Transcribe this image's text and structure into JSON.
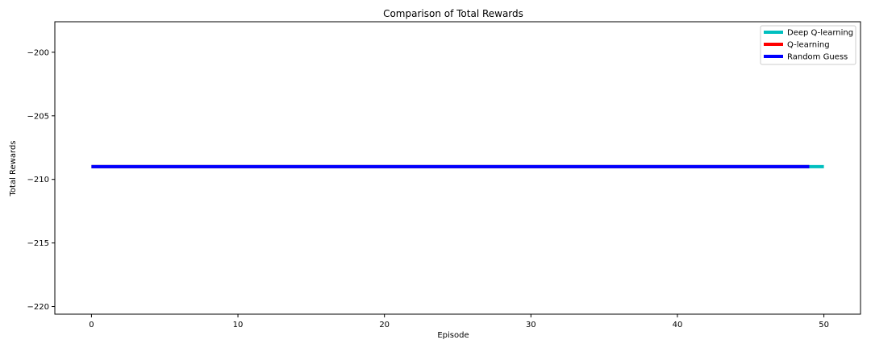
{
  "chart_data": {
    "type": "line",
    "title": "Comparison of Total Rewards",
    "xlabel": "Episode",
    "ylabel": "Total Rewards",
    "xlim": [
      -2.5,
      52.5
    ],
    "ylim": [
      -220.6,
      -197.6
    ],
    "xticks": [
      0,
      10,
      20,
      30,
      40,
      50
    ],
    "yticks": [
      -220,
      -215,
      -210,
      -205,
      -200
    ],
    "grid": false,
    "legend_position": "top-right",
    "series": [
      {
        "name": "Deep Q-learning",
        "color": "#00bfbf",
        "x": [
          0,
          50
        ],
        "y": [
          -209,
          -209
        ]
      },
      {
        "name": "Q-learning",
        "color": "#ff0000",
        "x": [
          0,
          49
        ],
        "y": [
          -209,
          -209
        ]
      },
      {
        "name": "Random Guess",
        "color": "#0000ff",
        "x": [
          0,
          49
        ],
        "y": [
          -209,
          -209
        ]
      }
    ]
  }
}
